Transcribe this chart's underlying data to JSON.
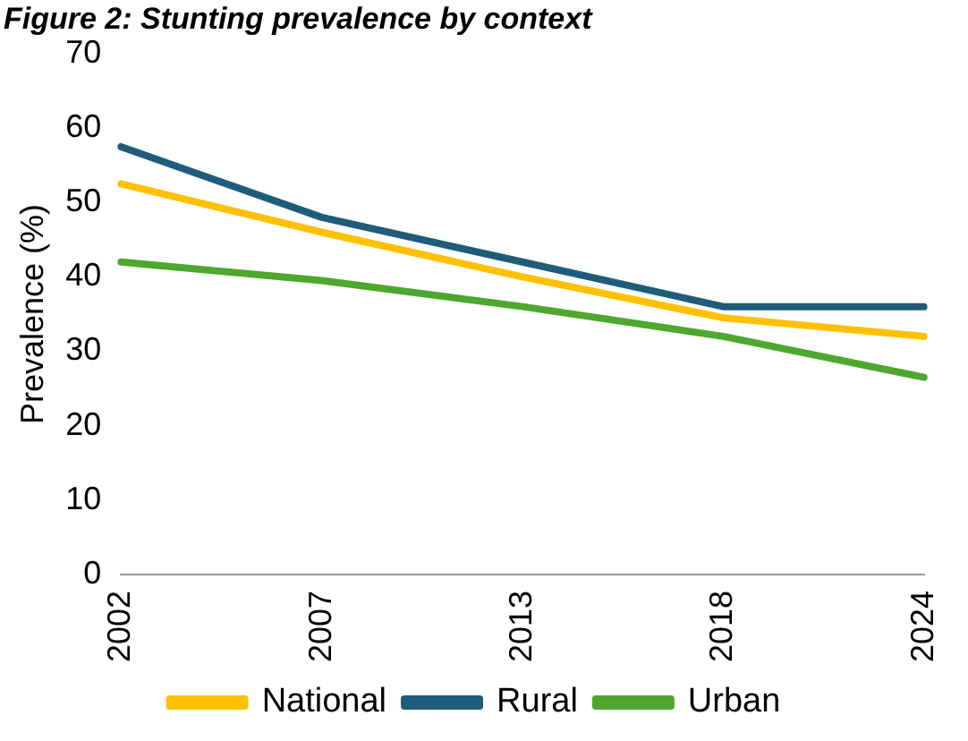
{
  "chart_data": {
    "type": "line",
    "title": "Figure 2: Stunting prevalence by context",
    "ylabel": "Prevalence (%)",
    "categories": [
      "2002",
      "2007",
      "2013",
      "2018",
      "2024"
    ],
    "series": [
      {
        "name": "National",
        "color": "#ffc000",
        "values": [
          52.5,
          46,
          40,
          34.5,
          32
        ]
      },
      {
        "name": "Rural",
        "color": "#1f5c7a",
        "values": [
          57.5,
          48,
          42,
          36,
          36
        ]
      },
      {
        "name": "Urban",
        "color": "#4ea72e",
        "values": [
          42,
          39.5,
          36,
          32,
          26.5
        ]
      }
    ],
    "ylim": [
      0,
      70
    ],
    "yticks": [
      0,
      10,
      20,
      30,
      40,
      50,
      60,
      70
    ],
    "grid": false,
    "legend": "bottom",
    "marker": "none",
    "line_style": "solid"
  }
}
